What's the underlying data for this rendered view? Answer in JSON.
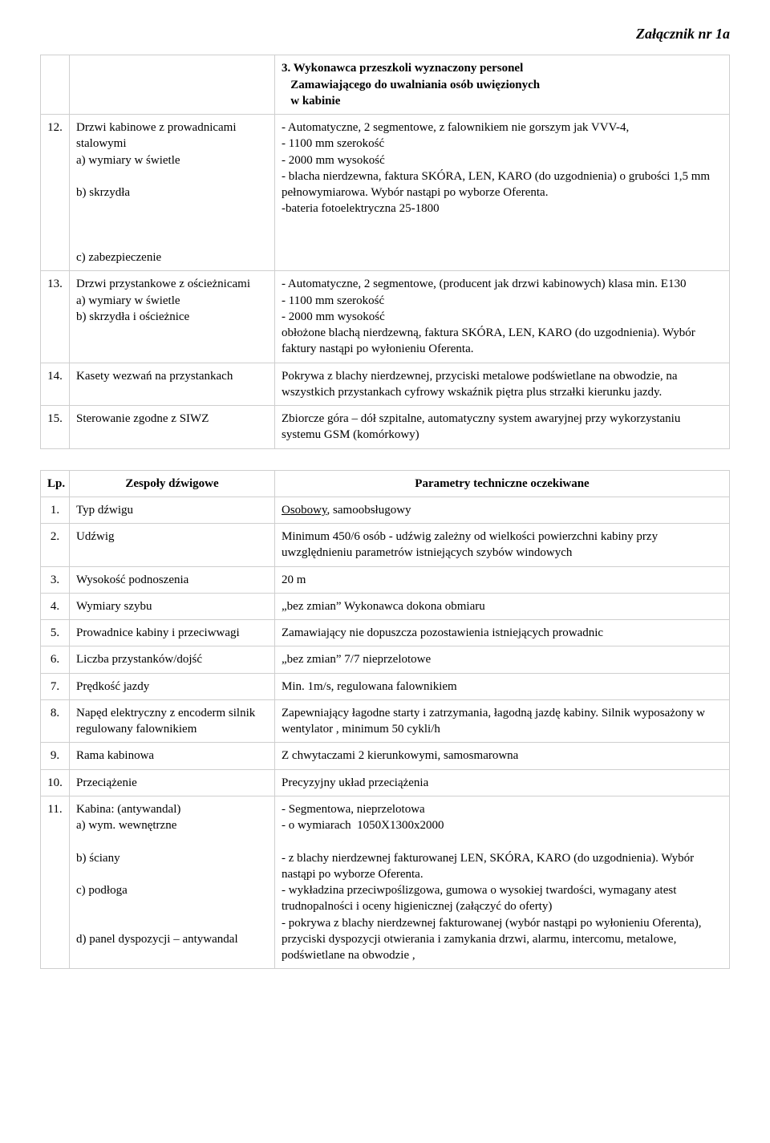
{
  "appendix": "Załącznik nr 1a",
  "t1": {
    "heading_num": "",
    "heading_label": "",
    "heading_text": "3. Wykonawca przeszkoli wyznaczony personel\n   Zamawiającego do uwalniania osób uwięzionych\n   w kabinie",
    "r12_num": "12.",
    "r12_label": "Drzwi kabinowe z prowadnicami stalowymi\na) wymiary w świetle\n\nb) skrzydła\n\n\n\nc) zabezpieczenie",
    "r12_desc": "- Automatyczne, 2 segmentowe, z falownikiem nie gorszym jak VVV-4,\n- 1100 mm szerokość\n- 2000 mm wysokość\n- blacha nierdzewna, faktura SKÓRA, LEN, KARO (do uzgodnienia) o grubości 1,5 mm pełnowymiarowa. Wybór nastąpi po wyborze Oferenta.\n-bateria fotoelektryczna 25-1800",
    "r13_num": "13.",
    "r13_label": "Drzwi przystankowe z ościeżnicami\na) wymiary w świetle\nb) skrzydła i ościeżnice",
    "r13_desc": "- Automatyczne, 2 segmentowe, (producent jak drzwi kabinowych) klasa min. E130\n- 1100 mm szerokość\n- 2000 mm wysokość\nobłożone blachą nierdzewną, faktura SKÓRA, LEN, KARO (do uzgodnienia). Wybór faktury nastąpi po wyłonieniu Oferenta.",
    "r14_num": "14.",
    "r14_label": "Kasety wezwań na przystankach",
    "r14_desc": "Pokrywa z blachy nierdzewnej, przyciski metalowe podświetlane na obwodzie, na wszystkich przystankach cyfrowy wskaźnik piętra plus strzałki kierunku jazdy.",
    "r15_num": "15.",
    "r15_label": "Sterowanie zgodne z SIWZ",
    "r15_desc": "Zbiorcze góra – dół szpitalne, automatyczny system awaryjnej przy wykorzystaniu systemu GSM (komórkowy)"
  },
  "t2": {
    "head_lp": "Lp.",
    "head_label": "Zespoły dźwigowe",
    "head_desc": "Parametry techniczne oczekiwane",
    "r1_num": "1.",
    "r1_label": "Typ dźwigu",
    "r1_desc_ul": "Osobowy",
    "r1_desc_rest": ", samoobsługowy",
    "r2_num": "2.",
    "r2_label": "Udźwig",
    "r2_desc": "Minimum 450/6 osób - udźwig zależny od wielkości powierzchni kabiny przy uwzględnieniu parametrów istniejących szybów windowych",
    "r3_num": "3.",
    "r3_label": "Wysokość podnoszenia",
    "r3_desc": "20 m",
    "r4_num": "4.",
    "r4_label": "Wymiary szybu",
    "r4_desc": "„bez zmian” Wykonawca dokona obmiaru",
    "r5_num": "5.",
    "r5_label": "Prowadnice kabiny i przeciwwagi",
    "r5_desc": "Zamawiający nie dopuszcza pozostawienia istniejących prowadnic",
    "r6_num": "6.",
    "r6_label": "Liczba przystanków/dojść",
    "r6_desc": "„bez zmian” 7/7 nieprzelotowe",
    "r7_num": "7.",
    "r7_label": "Prędkość jazdy",
    "r7_desc": "Min. 1m/s, regulowana falownikiem",
    "r8_num": "8.",
    "r8_label": "Napęd elektryczny z encoderm silnik regulowany falownikiem",
    "r8_desc": "Zapewniający łagodne starty i zatrzymania, łagodną jazdę kabiny. Silnik wyposażony w wentylator , minimum 50 cykli/h",
    "r9_num": "9.",
    "r9_label": "Rama kabinowa",
    "r9_desc": "Z chwytaczami 2 kierunkowymi, samosmarowna",
    "r10_num": "10.",
    "r10_label": "Przeciążenie",
    "r10_desc": "Precyzyjny układ przeciążenia",
    "r11_num": "11.",
    "r11_label": "Kabina: (antywandal)\na) wym. wewnętrzne\n\nb) ściany\n\nc) podłoga\n\n\nd) panel dyspozycji – antywandal",
    "r11_desc": "- Segmentowa, nieprzelotowa\n- o wymiarach  1050X1300x2000\n\n- z blachy nierdzewnej fakturowanej LEN, SKÓRA, KARO (do uzgodnienia). Wybór nastąpi po wyborze Oferenta.\n- wykładzina przeciwpoślizgowa, gumowa o wysokiej twardości, wymagany atest trudnopalności i oceny higienicznej (załączyć do oferty)\n- pokrywa z blachy nierdzewnej fakturowanej (wybór nastąpi po wyłonieniu Oferenta), przyciski dyspozycji otwierania i zamykania drzwi, alarmu, intercomu, metalowe, podświetlane na obwodzie ,"
  }
}
